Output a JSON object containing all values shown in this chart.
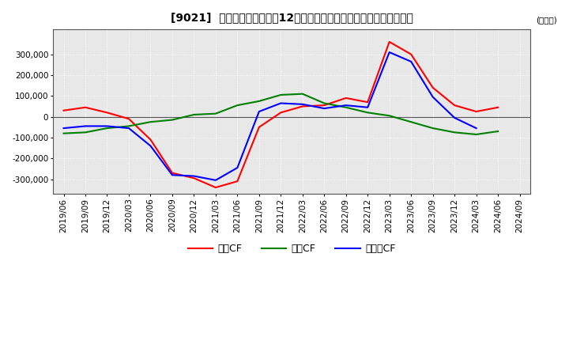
{
  "title": "[9021]  キャッシュフローの12か月移動合計の対前年同期増減額の推移",
  "ylabel": "(百万円)",
  "ylim": [
    -370000,
    420000
  ],
  "yticks": [
    -300000,
    -200000,
    -100000,
    0,
    100000,
    200000,
    300000
  ],
  "legend_labels": [
    "営業CF",
    "投資CF",
    "フリーCF"
  ],
  "legend_colors": [
    "#ff0000",
    "#008000",
    "#0000ff"
  ],
  "dates": [
    "2019/06",
    "2019/09",
    "2019/12",
    "2020/03",
    "2020/06",
    "2020/09",
    "2020/12",
    "2021/03",
    "2021/06",
    "2021/09",
    "2021/12",
    "2022/03",
    "2022/06",
    "2022/09",
    "2022/12",
    "2023/03",
    "2023/06",
    "2023/09",
    "2023/12",
    "2024/03",
    "2024/06",
    "2024/09"
  ],
  "営業CF": [
    30000,
    45000,
    20000,
    -10000,
    -110000,
    -270000,
    -295000,
    -340000,
    -310000,
    -50000,
    20000,
    50000,
    55000,
    90000,
    70000,
    360000,
    300000,
    140000,
    55000,
    25000,
    45000,
    null
  ],
  "投資CF": [
    -80000,
    -75000,
    -55000,
    -45000,
    -25000,
    -15000,
    10000,
    15000,
    55000,
    75000,
    105000,
    110000,
    65000,
    45000,
    20000,
    5000,
    -25000,
    -55000,
    -75000,
    -85000,
    -70000,
    null
  ],
  "フリーCF": [
    -55000,
    -45000,
    -45000,
    -55000,
    -140000,
    -280000,
    -285000,
    -305000,
    -245000,
    25000,
    65000,
    60000,
    40000,
    55000,
    45000,
    310000,
    265000,
    95000,
    -5000,
    -55000,
    null,
    null
  ],
  "background_color": "#ffffff",
  "plot_bg_color": "#e8e8e8",
  "grid_color": "#ffffff"
}
